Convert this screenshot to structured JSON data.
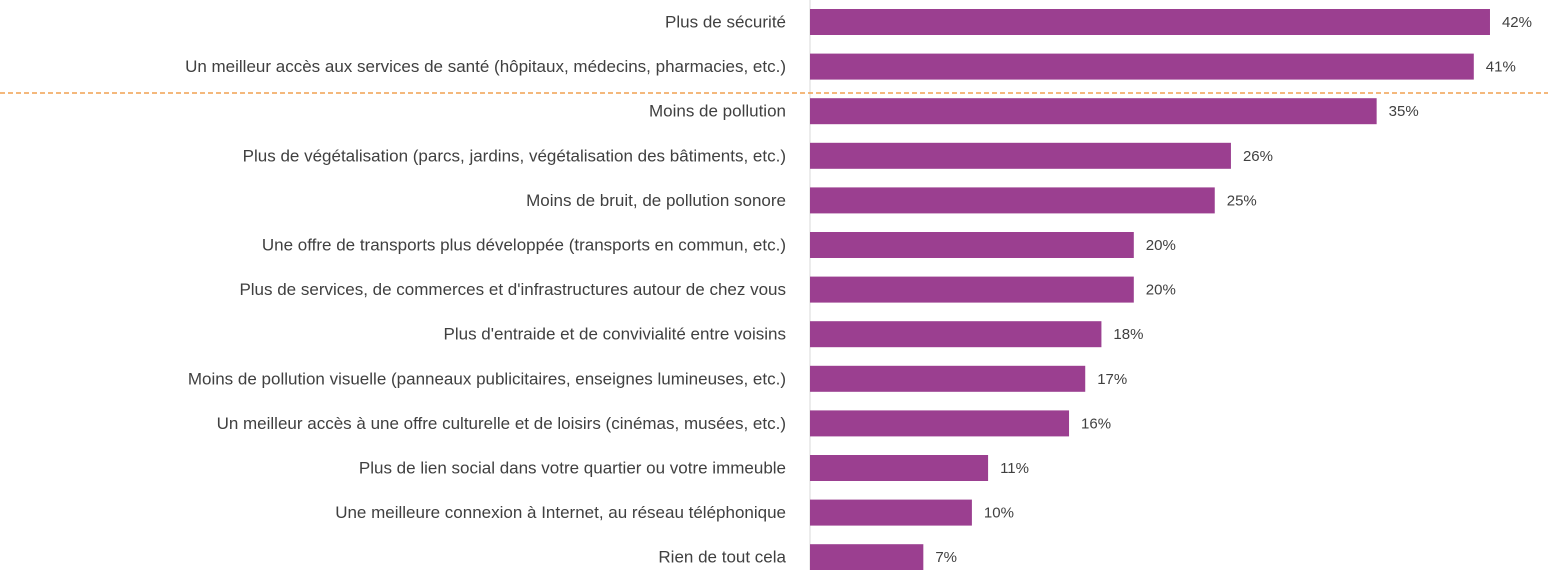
{
  "chart_data": {
    "type": "bar",
    "orientation": "horizontal",
    "color": "#9b3f90",
    "categories": [
      "Plus de sécurité",
      "Un meilleur accès aux services de santé (hôpitaux, médecins, pharmacies, etc.)",
      "Moins de pollution",
      "Plus de végétalisation (parcs, jardins, végétalisation des bâtiments, etc.)",
      "Moins de bruit, de pollution sonore",
      "Une offre de transports plus développée (transports en commun, etc.)",
      "Plus de services, de commerces et d'infrastructures autour de chez vous",
      "Plus d'entraide et de convivialité entre voisins",
      "Moins de pollution visuelle (panneaux publicitaires, enseignes lumineuses, etc.)",
      "Un meilleur accès à une offre culturelle et de loisirs (cinémas, musées, etc.)",
      "Plus de lien social dans votre quartier ou votre immeuble",
      "Une meilleure connexion à Internet, au réseau téléphonique",
      "Rien de tout cela"
    ],
    "values": [
      42,
      41,
      35,
      26,
      25,
      20,
      20,
      18,
      17,
      16,
      11,
      10,
      7
    ],
    "value_labels": [
      "42%",
      "41%",
      "35%",
      "26%",
      "25%",
      "20%",
      "20%",
      "18%",
      "17%",
      "16%",
      "11%",
      "10%",
      "7%"
    ]
  }
}
